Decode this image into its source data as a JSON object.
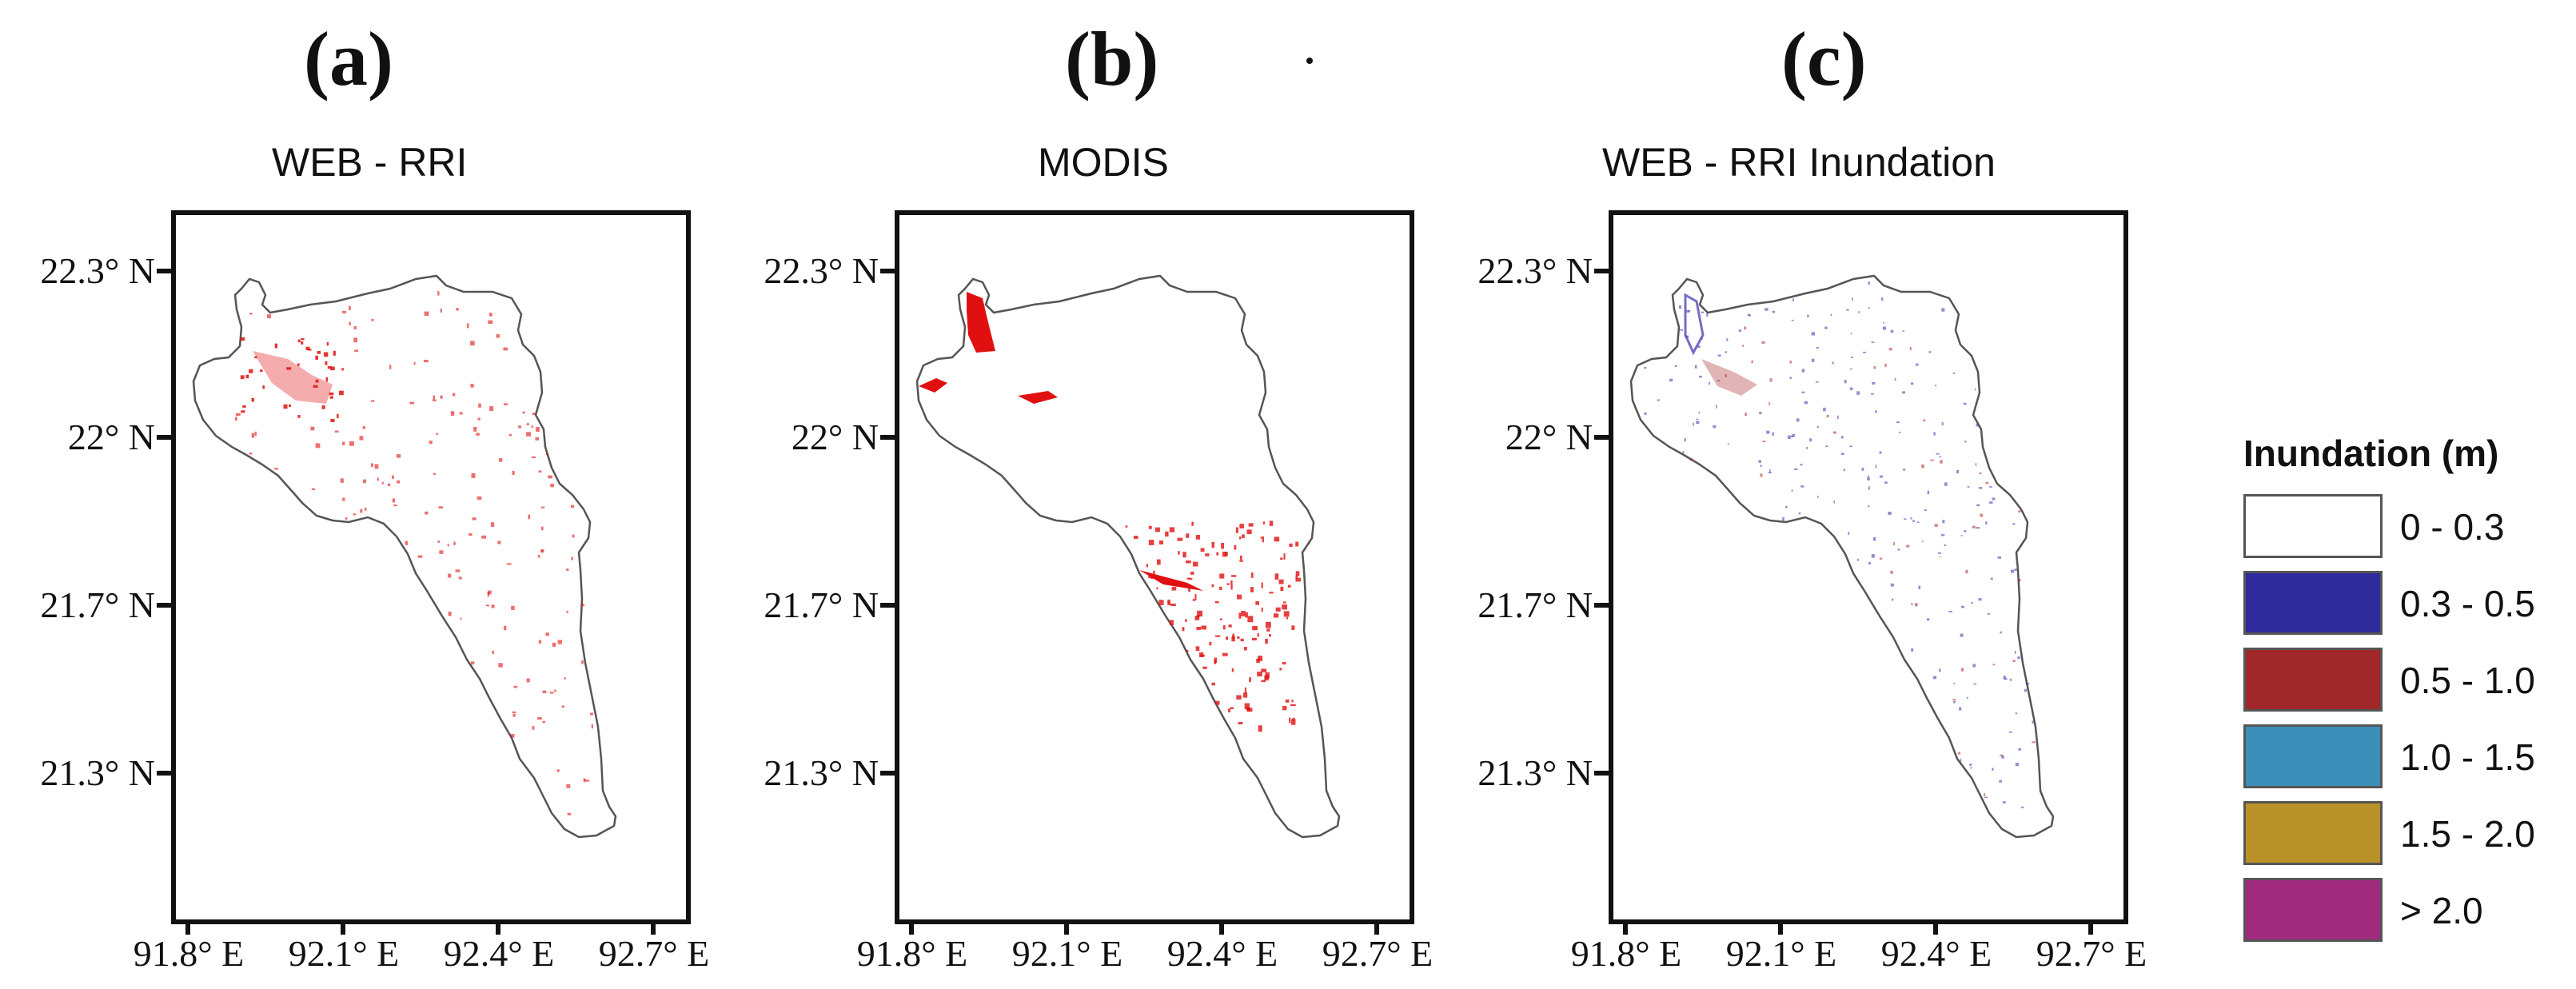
{
  "figure": {
    "panels": [
      {
        "letter": "(a)",
        "title": "WEB - RRI",
        "style": "red"
      },
      {
        "letter": "(b)",
        "title": "MODIS",
        "style": "modis"
      },
      {
        "letter": "(c)",
        "title": "WEB - RRI Inundation",
        "style": "classes"
      }
    ],
    "lat_labels": [
      "22.3° N",
      "22° N",
      "21.7° N",
      "21.3° N"
    ],
    "lon_labels": [
      "91.8° E",
      "92.1° E",
      "92.4° E",
      "92.7° E"
    ],
    "colors": {
      "boundary": "#555555",
      "flood_red": "#e01010",
      "class_blue": "#3a2fa8",
      "class_red": "#a82a2a"
    }
  },
  "legend": {
    "title": "Inundation (m)",
    "items": [
      {
        "label": "0 - 0.3",
        "color": "#ffffff"
      },
      {
        "label": "0.3 - 0.5",
        "color": "#2e2a9c"
      },
      {
        "label": "0.5 - 1.0",
        "color": "#a0282a"
      },
      {
        "label": "1.0 - 1.5",
        "color": "#3c8fb8"
      },
      {
        "label": "1.5 - 2.0",
        "color": "#b89128"
      },
      {
        "label": "> 2.0",
        "color": "#a02a7e"
      }
    ]
  }
}
